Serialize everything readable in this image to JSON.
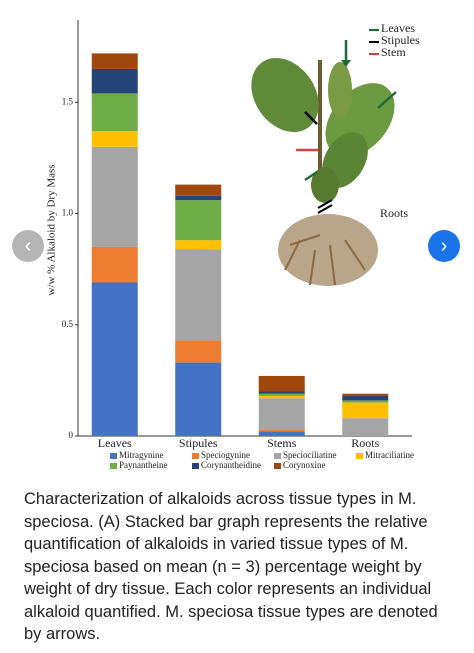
{
  "chart_data": {
    "type": "bar",
    "stacked": true,
    "y_label": "w/w % Alkaloid by Dry Mass",
    "categories": [
      "Leaves",
      "Stipules",
      "Stems",
      "Roots"
    ],
    "series": [
      {
        "name": "Mitragynine",
        "color": "#4472c4",
        "values": [
          0.69,
          0.33,
          0.02,
          0
        ]
      },
      {
        "name": "Speciogynine",
        "color": "#ed7d31",
        "values": [
          0.16,
          0.1,
          0.01,
          0
        ]
      },
      {
        "name": "Speciociliatine",
        "color": "#a5a5a5",
        "values": [
          0.45,
          0.41,
          0.14,
          0.08
        ]
      },
      {
        "name": "Mitraciliatine",
        "color": "#ffc000",
        "values": [
          0.07,
          0.04,
          0.01,
          0.07
        ]
      },
      {
        "name": "Paynantheine",
        "color": "#70ad47",
        "values": [
          0.17,
          0.18,
          0.01,
          0.01
        ]
      },
      {
        "name": "Corynantheidine",
        "color": "#264478",
        "values": [
          0.11,
          0.02,
          0.01,
          0.02
        ]
      },
      {
        "name": "Corynoxine",
        "color": "#9e480e",
        "values": [
          0.07,
          0.05,
          0.07,
          0.01
        ]
      }
    ],
    "ylim": [
      0,
      1.87
    ],
    "yticks": [
      0,
      0.5,
      {
        "value": 1,
        "label": "1.0"
      },
      1.5
    ],
    "annotations": [
      "Leaves",
      "Stipules",
      "Stem",
      "Roots"
    ]
  },
  "caption": "Characterization of alkaloids across tissue types in M. speciosa. (A) Stacked bar graph represents the relative quantification of alkaloids in varied tissue types of M. speciosa based on mean (n = 3) percentage weight by weight of dry tissue. Each color represents an individual alkaloid quantified. M. speciosa tissue types are denoted by arrows."
}
